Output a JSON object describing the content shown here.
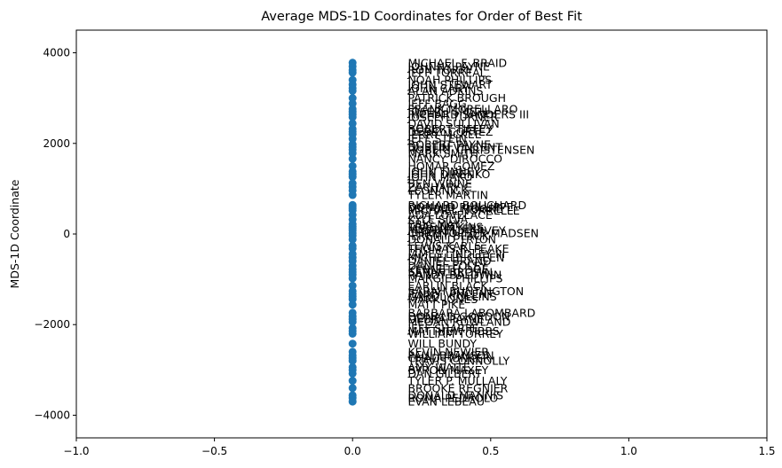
{
  "chart_data": {
    "type": "scatter",
    "title": "Average MDS-1D Coordinates for Order of Best Fit",
    "xlabel": "",
    "ylabel": "MDS-1D Coordinate",
    "xlim": [
      -1.0,
      1.5
    ],
    "ylim": [
      -4500,
      4500
    ],
    "xticks": [
      -1.0,
      -0.5,
      0.0,
      0.5,
      1.0,
      1.5
    ],
    "xtick_labels": [
      "−1.0",
      "−0.5",
      "0.0",
      "0.5",
      "1.0",
      "1.5"
    ],
    "yticks": [
      -4000,
      -2000,
      0,
      2000,
      4000
    ],
    "ytick_labels": [
      "−4000",
      "−2000",
      "0",
      "2000",
      "4000"
    ],
    "grid": false,
    "legend": "none",
    "marker_color": "#1f77b4",
    "label_x_offset": 0.2,
    "points": [
      {
        "x": 0,
        "y": 3780,
        "label": "MICHAEL F. BRAID"
      },
      {
        "x": 0,
        "y": 3700,
        "label": "JOHNNY PAYNE"
      },
      {
        "x": 0,
        "y": 3620,
        "label": "RON TORRY"
      },
      {
        "x": 0,
        "y": 3560,
        "label": "JEFF TORREAL"
      },
      {
        "x": 0,
        "y": 3400,
        "label": "NOAH PHILLIPS"
      },
      {
        "x": 0,
        "y": 3300,
        "label": "JOHN STEWART"
      },
      {
        "x": 0,
        "y": 3220,
        "label": "JOHN CARY"
      },
      {
        "x": 0,
        "y": 3160,
        "label": "ALAN ADKINS"
      },
      {
        "x": 0,
        "y": 3000,
        "label": "PATRICK BROUGH"
      },
      {
        "x": 0,
        "y": 2880,
        "label": "JEFF BAGG"
      },
      {
        "x": 0,
        "y": 2760,
        "label": "FRANK MORELLARO"
      },
      {
        "x": 0,
        "y": 2700,
        "label": "JOSEPH SMITH"
      },
      {
        "x": 0,
        "y": 2640,
        "label": "RICHARD SANDERS III"
      },
      {
        "x": 0,
        "y": 2580,
        "label": "JOSEPH TURNER"
      },
      {
        "x": 0,
        "y": 2440,
        "label": "DAVID SULLIVAN"
      },
      {
        "x": 0,
        "y": 2320,
        "label": "ROBERT TIFFEY"
      },
      {
        "x": 0,
        "y": 2260,
        "label": "DEBBY CORTEZ"
      },
      {
        "x": 0,
        "y": 2200,
        "label": "JERRY MCKEE"
      },
      {
        "x": 0,
        "y": 2100,
        "label": "JEFF STEIN"
      },
      {
        "x": 0,
        "y": 1980,
        "label": "ROBERT PAYNE"
      },
      {
        "x": 0,
        "y": 1920,
        "label": "DUSTIN VINCENT"
      },
      {
        "x": 0,
        "y": 1860,
        "label": "ROBERT CHRISTENSEN"
      },
      {
        "x": 0,
        "y": 1780,
        "label": "MARK SMITH"
      },
      {
        "x": 0,
        "y": 1660,
        "label": "NANCY DIROCCO"
      },
      {
        "x": 0,
        "y": 1500,
        "label": "HOMAR GOMEZ"
      },
      {
        "x": 0,
        "y": 1380,
        "label": "JOHN TINNEY"
      },
      {
        "x": 0,
        "y": 1320,
        "label": "JOHN DIRENKO"
      },
      {
        "x": 0,
        "y": 1260,
        "label": "JOHN MAKO"
      },
      {
        "x": 0,
        "y": 1120,
        "label": "BEN WINNE"
      },
      {
        "x": 0,
        "y": 1040,
        "label": "ZACHARY C"
      },
      {
        "x": 0,
        "y": 960,
        "label": "LEON NICK"
      },
      {
        "x": 0,
        "y": 860,
        "label": "TYLER MARTIN"
      },
      {
        "x": 0,
        "y": 640,
        "label": "RICHARD BOUCHARD"
      },
      {
        "x": 0,
        "y": 600,
        "label": "DONALD PHILLIPPE"
      },
      {
        "x": 0,
        "y": 560,
        "label": "MICHAEL MOORE"
      },
      {
        "x": 0,
        "y": 520,
        "label": "MICHAEL NORRELLE"
      },
      {
        "x": 0,
        "y": 420,
        "label": "ADA LOVELACE"
      },
      {
        "x": 0,
        "y": 320,
        "label": "KYLE SILVA"
      },
      {
        "x": 0,
        "y": 220,
        "label": "ERIC MAY"
      },
      {
        "x": 0,
        "y": 160,
        "label": "TRAE MCKINS"
      },
      {
        "x": 0,
        "y": 120,
        "label": "JASON MYERS"
      },
      {
        "x": 0,
        "y": 80,
        "label": "MICHAEL HARVEY"
      },
      {
        "x": 0,
        "y": 20,
        "label": "CHRISTOPHER MADSEN"
      },
      {
        "x": 0,
        "y": -40,
        "label": "JEREMY BLACK"
      },
      {
        "x": 0,
        "y": -120,
        "label": "DONALD TRYON"
      },
      {
        "x": 0,
        "y": -260,
        "label": "LEWIS KARLS"
      },
      {
        "x": 0,
        "y": -320,
        "label": "THOMAS R. FEAKE"
      },
      {
        "x": 0,
        "y": -440,
        "label": "JAMES LINDLEY III"
      },
      {
        "x": 0,
        "y": -520,
        "label": "MICHELLE CREEN"
      },
      {
        "x": 0,
        "y": -600,
        "label": "DANIEL BRAND"
      },
      {
        "x": 0,
        "y": -700,
        "label": "DANIEL FOLEY"
      },
      {
        "x": 0,
        "y": -780,
        "label": "KENNETH DOE"
      },
      {
        "x": 0,
        "y": -840,
        "label": "SARAH BROWN"
      },
      {
        "x": 0,
        "y": -900,
        "label": "RANDY BALDWIN"
      },
      {
        "x": 0,
        "y": -980,
        "label": "MARGIE PHILLIPS"
      },
      {
        "x": 0,
        "y": -1140,
        "label": "EARLIN BLACK"
      },
      {
        "x": 0,
        "y": -1260,
        "label": "SARAH BUNTINGTON"
      },
      {
        "x": 0,
        "y": -1320,
        "label": "JENNY VINCENT"
      },
      {
        "x": 0,
        "y": -1380,
        "label": "CAROL COLLINS"
      },
      {
        "x": 0,
        "y": -1440,
        "label": "MARK JONES"
      },
      {
        "x": 0,
        "y": -1560,
        "label": "MATT PIKE"
      },
      {
        "x": 0,
        "y": -1740,
        "label": "BARBARA LABOMBARD"
      },
      {
        "x": 0,
        "y": -1820,
        "label": "DONALD GORDON"
      },
      {
        "x": 0,
        "y": -1880,
        "label": "DEBRA PAYNE"
      },
      {
        "x": 0,
        "y": -1940,
        "label": "MEGAN ROWLAND"
      },
      {
        "x": 0,
        "y": -2080,
        "label": "JEFF SHARPE"
      },
      {
        "x": 0,
        "y": -2140,
        "label": "MATTHEW TIBBS"
      },
      {
        "x": 0,
        "y": -2200,
        "label": "WILLIAM TORREY"
      },
      {
        "x": 0,
        "y": -2420,
        "label": "WILL BUNDY"
      },
      {
        "x": 0,
        "y": -2600,
        "label": "KEVIN NEWIER"
      },
      {
        "x": 0,
        "y": -2680,
        "label": "PAUL BRANSON"
      },
      {
        "x": 0,
        "y": -2740,
        "label": "CHAD HUNKER"
      },
      {
        "x": 0,
        "y": -2800,
        "label": "TRAVIS CONNOLLY"
      },
      {
        "x": 0,
        "y": -2940,
        "label": "AMY WAITE"
      },
      {
        "x": 0,
        "y": -3000,
        "label": "BYRON MAXEY"
      },
      {
        "x": 0,
        "y": -3080,
        "label": "DAN GILBERT"
      },
      {
        "x": 0,
        "y": -3240,
        "label": "TYLER P. MULLALY"
      },
      {
        "x": 0,
        "y": -3400,
        "label": "BROOKE REGNIER"
      },
      {
        "x": 0,
        "y": -3560,
        "label": "DONALD MANNIS"
      },
      {
        "x": 0,
        "y": -3620,
        "label": "ROMA PEDROLO"
      },
      {
        "x": 0,
        "y": -3700,
        "label": "EVAN LEBEAU"
      }
    ]
  }
}
